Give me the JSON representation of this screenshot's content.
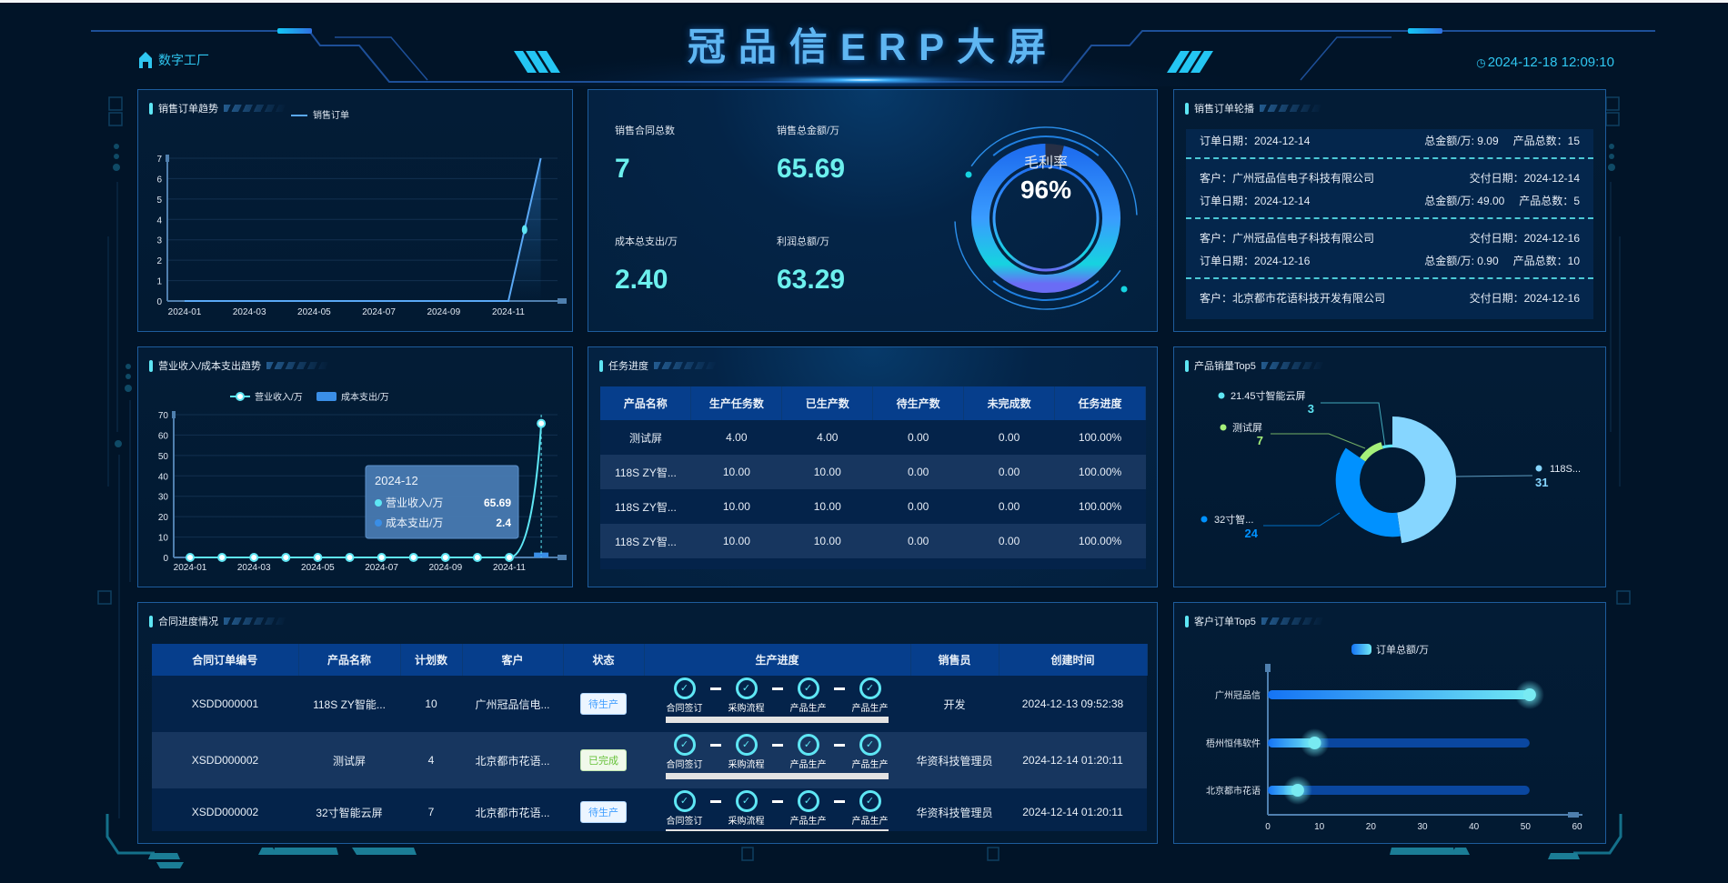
{
  "header": {
    "title": "冠品信ERP大屏",
    "home_label": "数字工厂",
    "datetime": "2024-12-18 12:09:10",
    "accent": "#2fc6f0"
  },
  "sales_trend": {
    "title": "销售订单趋势",
    "chart_data": {
      "type": "line",
      "legend": [
        "销售订单"
      ],
      "categories": [
        "2024-01",
        "2024-02",
        "2024-03",
        "2024-04",
        "2024-05",
        "2024-06",
        "2024-07",
        "2024-08",
        "2024-09",
        "2024-10",
        "2024-11",
        "2024-12"
      ],
      "tick_labels": [
        "2024-01",
        "2024-03",
        "2024-05",
        "2024-07",
        "2024-09",
        "2024-11"
      ],
      "series": [
        {
          "name": "销售订单",
          "values": [
            0,
            0,
            0,
            0,
            0,
            0,
            0,
            0,
            0,
            0,
            0,
            7
          ]
        }
      ],
      "ylim": [
        0,
        7
      ],
      "yticks": [
        0,
        1,
        2,
        3,
        4,
        5,
        6,
        7
      ],
      "grid": true,
      "legend_position": "top",
      "color": "#5aa8f5"
    }
  },
  "stats": {
    "items": [
      {
        "label": "销售合同总数",
        "value": "7"
      },
      {
        "label": "销售总金额/万",
        "value": "65.69"
      },
      {
        "label": "成本总支出/万",
        "value": "2.40"
      },
      {
        "label": "利润总额/万",
        "value": "63.29"
      }
    ],
    "gauge": {
      "label": "毛利率",
      "value_text": "96%",
      "percent": 96
    }
  },
  "order_scroll": {
    "title": "销售订单轮播",
    "customer_label": "客户：",
    "delivery_label": "交付日期：",
    "order_date_label": "订单日期：",
    "amount_label": "总金额/万: ",
    "count_label": "产品总数：",
    "items": [
      {
        "order_date": "2024-12-14",
        "amount": "9.09",
        "count": "15"
      },
      {
        "customer": "广州冠品信电子科技有限公司",
        "delivery": "2024-12-14",
        "order_date": "2024-12-14",
        "amount": "49.00",
        "count": "5"
      },
      {
        "customer": "广州冠品信电子科技有限公司",
        "delivery": "2024-12-16",
        "order_date": "2024-12-16",
        "amount": "0.90",
        "count": "10"
      },
      {
        "customer": "北京都市花语科技开发有限公司",
        "delivery": "2024-12-16"
      }
    ]
  },
  "revenue_trend": {
    "title": "营业收入/成本支出趋势",
    "chart_data": {
      "type": "line+bar",
      "categories": [
        "2024-01",
        "2024-02",
        "2024-03",
        "2024-04",
        "2024-05",
        "2024-06",
        "2024-07",
        "2024-08",
        "2024-09",
        "2024-10",
        "2024-11",
        "2024-12"
      ],
      "tick_labels": [
        "2024-01",
        "2024-03",
        "2024-05",
        "2024-07",
        "2024-09",
        "2024-11"
      ],
      "series": [
        {
          "name": "营业收入/万",
          "type": "line",
          "values": [
            0,
            0,
            0,
            0,
            0,
            0,
            0,
            0,
            0,
            0,
            0,
            65.69
          ],
          "color": "#5ee6f4"
        },
        {
          "name": "成本支出/万",
          "type": "bar",
          "values": [
            0,
            0,
            0,
            0,
            0,
            0,
            0,
            0,
            0,
            0,
            0,
            2.4
          ],
          "color": "#3a8ee6"
        }
      ],
      "ylim": [
        0,
        70
      ],
      "yticks": [
        0,
        10,
        20,
        30,
        40,
        50,
        60,
        70
      ],
      "grid": true,
      "legend_position": "top",
      "tooltip": {
        "title": "2024-12",
        "rows": [
          {
            "name": "营业收入/万",
            "value": "65.69"
          },
          {
            "name": "成本支出/万",
            "value": "2.4"
          }
        ]
      }
    }
  },
  "task_progress": {
    "title": "任务进度",
    "columns": [
      "产品名称",
      "生产任务数",
      "已生产数",
      "待生产数",
      "未完成数",
      "任务进度"
    ],
    "rows": [
      [
        "测试屏",
        "4.00",
        "4.00",
        "0.00",
        "0.00",
        "100.00%"
      ],
      [
        "118S ZY智...",
        "10.00",
        "10.00",
        "0.00",
        "0.00",
        "100.00%"
      ],
      [
        "118S ZY智...",
        "10.00",
        "10.00",
        "0.00",
        "0.00",
        "100.00%"
      ],
      [
        "118S ZY智...",
        "10.00",
        "10.00",
        "0.00",
        "0.00",
        "100.00%"
      ]
    ]
  },
  "product_top5": {
    "title": "产品销量Top5",
    "chart_data": {
      "type": "pie",
      "variant": "rose-donut",
      "slices": [
        {
          "name": "118S...",
          "value": 31,
          "color": "#86d6ff"
        },
        {
          "name": "32寸智...",
          "value": 24,
          "color": "#0091ff"
        },
        {
          "name": "测试屏",
          "value": 7,
          "color": "#a5f07a"
        },
        {
          "name": "21.45寸智能云屏",
          "value": 3,
          "color": "#5ee6f4"
        }
      ]
    }
  },
  "contracts": {
    "title": "合同进度情况",
    "columns": [
      "合同订单编号",
      "产品名称",
      "计划数",
      "客户",
      "状态",
      "生产进度",
      "销售员",
      "创建时间"
    ],
    "step_labels": [
      "合同签订",
      "采购流程",
      "产品生产",
      "产品生产"
    ],
    "rows": [
      {
        "id": "XSDD000001",
        "product": "118S ZY智能...",
        "qty": "10",
        "customer": "广州冠品信电...",
        "status": "待生产",
        "status_kind": "pending",
        "progress": 100,
        "sales": "开发",
        "created": "2024-12-13 09:52:38"
      },
      {
        "id": "XSDD000002",
        "product": "测试屏",
        "qty": "4",
        "customer": "北京都市花语...",
        "status": "已完成",
        "status_kind": "done",
        "progress": 100,
        "sales": "华资科技管理员",
        "created": "2024-12-14 01:20:11"
      },
      {
        "id": "XSDD000002",
        "product": "32寸智能云屏",
        "qty": "7",
        "customer": "北京都市花语...",
        "status": "待生产",
        "status_kind": "pending",
        "progress": 100,
        "sales": "华资科技管理员",
        "created": "2024-12-14 01:20:11"
      }
    ],
    "status_colors": {
      "pending": "#409eff",
      "done": "#67c23a"
    }
  },
  "customer_top5": {
    "title": "客户订单Top5",
    "chart_data": {
      "type": "bar",
      "orientation": "horizontal",
      "legend": [
        "订单总额/万"
      ],
      "categories": [
        "广州冠品信",
        "梧州恒伟软件",
        "北京都市花语"
      ],
      "values": [
        50.8,
        9.09,
        5.8
      ],
      "track_max": 50.8,
      "xlim": [
        0,
        60
      ],
      "xticks": [
        0,
        10,
        20,
        30,
        40,
        50,
        60
      ],
      "legend_position": "top"
    }
  }
}
